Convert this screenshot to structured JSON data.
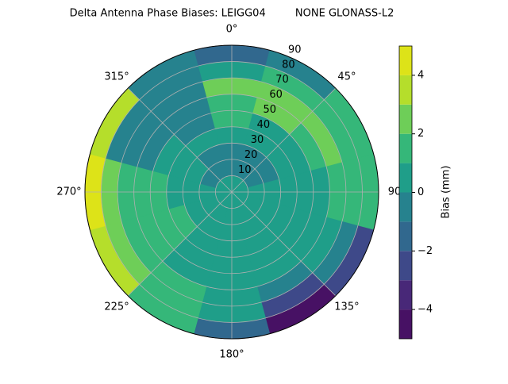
{
  "chart_data": {
    "type": "polar-contour",
    "title": "Delta Antenna Phase Biases: LEIGG04         NONE GLONASS-L2",
    "colorbar_label": "Bias (mm)",
    "azimuth": [
      0,
      30,
      60,
      90,
      120,
      150,
      180,
      210,
      240,
      270,
      300,
      330
    ],
    "zenith": [
      5,
      15,
      25,
      35,
      45,
      55,
      65,
      75,
      85
    ],
    "values": [
      [
        0.5,
        0.5,
        0.5,
        0.5,
        0.5,
        0.5,
        0.5,
        0.5,
        0.5,
        0.5,
        0.5,
        0.5
      ],
      [
        -0.5,
        -0.5,
        -0.3,
        0.3,
        0.5,
        0.5,
        0.5,
        0.5,
        0.5,
        0.3,
        -0.3,
        -0.5
      ],
      [
        -0.3,
        -0.5,
        -0.5,
        0.3,
        0.5,
        0.8,
        0.5,
        0.5,
        0.5,
        0.5,
        0.3,
        -0.3
      ],
      [
        0.5,
        0.5,
        0.5,
        0.5,
        0.8,
        0.5,
        0.5,
        0.5,
        1.2,
        0.8,
        0.5,
        0.3
      ],
      [
        1.2,
        0.8,
        0.5,
        0.5,
        0.5,
        0.5,
        0.5,
        0.8,
        1.5,
        1.2,
        0.5,
        -0.5
      ],
      [
        1.5,
        2.2,
        1.5,
        0.5,
        0.5,
        0.3,
        0.5,
        0.8,
        1.5,
        1.5,
        -0.3,
        -0.5
      ],
      [
        2.2,
        2.5,
        2.3,
        1.2,
        0.5,
        -0.5,
        0.8,
        1.2,
        1.8,
        1.5,
        -0.5,
        -0.6
      ],
      [
        0.5,
        1.5,
        1.8,
        1.5,
        -0.8,
        -2.5,
        0.5,
        1.5,
        2.5,
        2.8,
        -0.5,
        -0.5
      ],
      [
        -1.5,
        -0.8,
        1.2,
        1.3,
        -2.5,
        -4.5,
        -1.5,
        1.5,
        3.5,
        4.2,
        3.5,
        -0.3
      ]
    ],
    "levels": [
      -5,
      -4,
      -3,
      -2,
      -1,
      0,
      1,
      2,
      3,
      4,
      5
    ],
    "level_colors": [
      "#471164",
      "#482878",
      "#3e4989",
      "#31688e",
      "#26828e",
      "#1f9e89",
      "#35b779",
      "#6ece58",
      "#b5de2b",
      "#dde318"
    ],
    "rlim": [
      0,
      90
    ],
    "rticks": [
      10,
      20,
      30,
      40,
      50,
      60,
      70,
      80,
      90
    ],
    "thetaticks": [
      {
        "value": 0,
        "label": "0°"
      },
      {
        "value": 45,
        "label": "45°"
      },
      {
        "value": 90,
        "label": "90"
      },
      {
        "value": 135,
        "label": "135°"
      },
      {
        "value": 180,
        "label": "180°"
      },
      {
        "value": 225,
        "label": "225°"
      },
      {
        "value": 270,
        "label": "270°"
      },
      {
        "value": 315,
        "label": "315°"
      }
    ],
    "clim": [
      -5,
      5
    ],
    "cticks": [
      {
        "value": -4,
        "label": "−4"
      },
      {
        "value": -2,
        "label": "−2"
      },
      0,
      2,
      4
    ],
    "grid": true
  }
}
